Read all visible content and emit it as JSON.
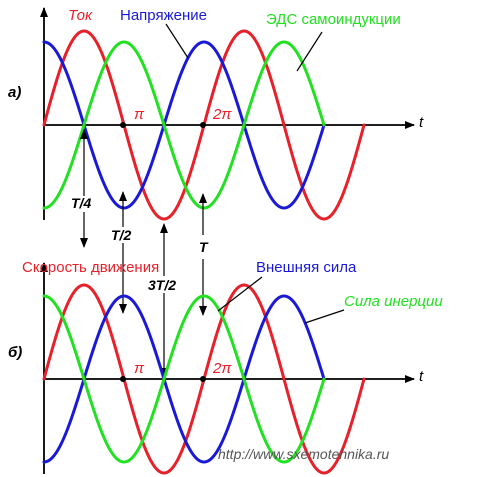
{
  "panel_a": {
    "label": "а)",
    "axis_t": "t",
    "pi_label": "π",
    "two_pi_label": "2π",
    "legend": {
      "current": "Ток",
      "voltage": "Напряжение",
      "emf": "ЭДС самоиндукции"
    }
  },
  "panel_b": {
    "label": "б)",
    "axis_t": "t",
    "pi_label": "π",
    "two_pi_label": "2π",
    "legend": {
      "velocity": "Скорость движения",
      "external_force": "Внешняя сила",
      "inertia_force": "Сила инерции"
    }
  },
  "time_marks": {
    "quarter": "T/4",
    "half": "T/2",
    "three_quarter": "3T/2",
    "full": "T"
  },
  "watermark": "http://www.sxemotehnika.ru",
  "colors": {
    "red": "#e8202a",
    "blue": "#1a1ad6",
    "green": "#22e022",
    "axis": "#000000"
  }
}
